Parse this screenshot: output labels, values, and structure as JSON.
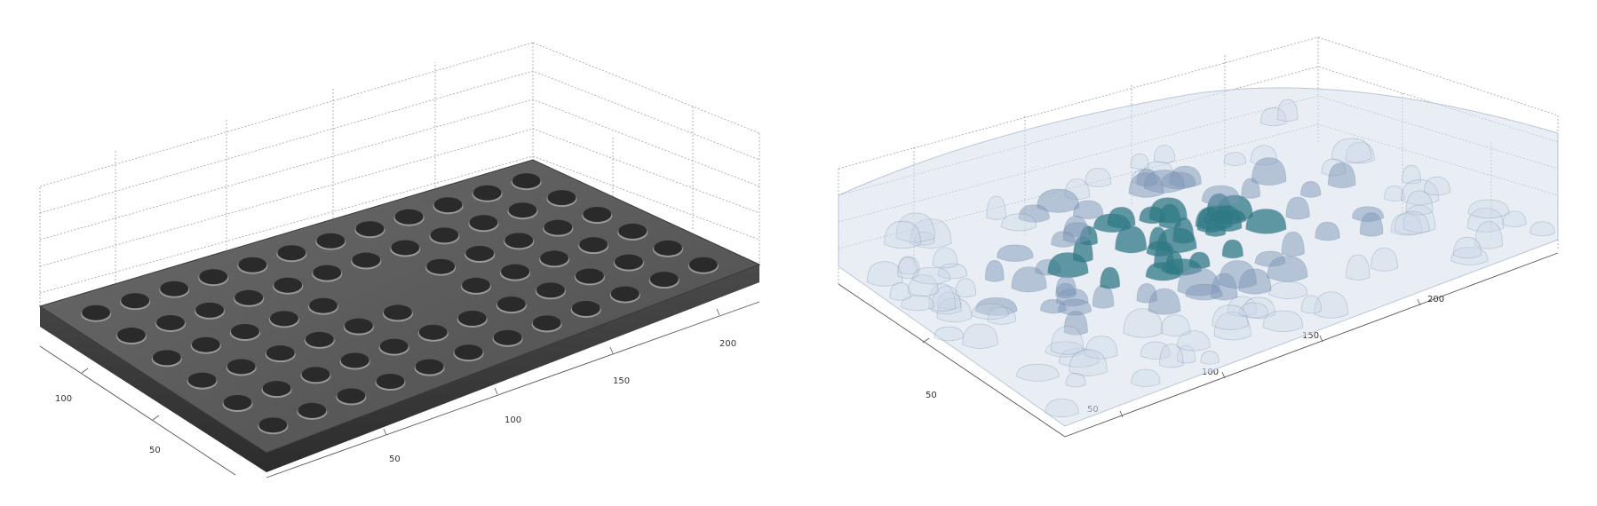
{
  "figure": {
    "left_panel": {
      "colors": {
        "plate_top": "#5b5b5b",
        "plate_side": "#3a3a3a",
        "hole": "#2a2a2a",
        "hole_rim": "#9a9a9a",
        "grid": "#9a9a9a"
      },
      "x_ticks": [
        "50",
        "100"
      ],
      "y_ticks": [
        "50",
        "100",
        "150",
        "200"
      ]
    },
    "right_panel": {
      "colors": {
        "iso_outer": "#c9d5e6",
        "iso_mid": "#7f98b8",
        "iso_inner": "#2f7a84",
        "grid": "#9a9a9a"
      },
      "x_ticks": [
        "50"
      ],
      "y_ticks": [
        "50",
        "100",
        "150",
        "200"
      ]
    }
  }
}
